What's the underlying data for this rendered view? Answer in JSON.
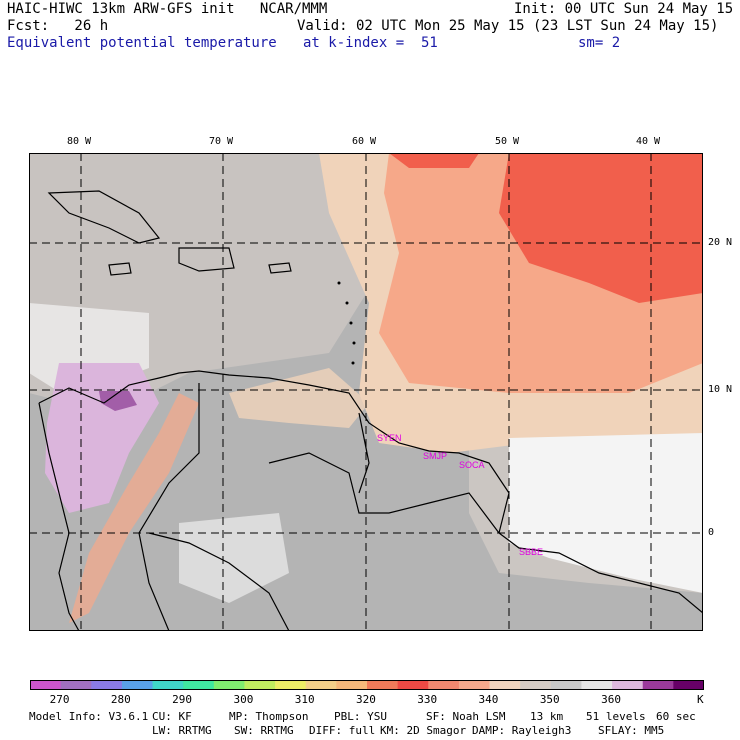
{
  "header": {
    "title": "HAIC-HIWC 13km ARW-GFS init   NCAR/MMM",
    "init": "Init: 00 UTC Sun 24 May 15",
    "fcst": "Fcst:   26 h",
    "valid": "Valid: 02 UTC Mon 25 May 15 (23 LST Sun 24 May 15)",
    "field": "Equivalent potential temperature",
    "level": "at k-index =  51",
    "smooth": "sm= 2"
  },
  "map": {
    "lon_labels": [
      "80 W",
      "70 W",
      "60 W",
      "50 W",
      "40 W"
    ],
    "lat_labels": [
      "20 N",
      "10 N",
      "0"
    ],
    "stations": [
      "SYEN",
      "SMJP",
      "SOCA",
      "SBBE"
    ],
    "colors": {
      "gray_dark": "#b4b4b4",
      "gray_light": "#cbc6c2",
      "peach": "#f0d3ba",
      "salmon": "#f6a889",
      "red": "#f15f4c",
      "white": "#f4f4f4",
      "lavender": "#dbb5dc",
      "purple": "#a25ea8",
      "station": "#e000e0"
    }
  },
  "colorbar": {
    "colors": [
      "#cc55cc",
      "#a070c0",
      "#8a7ae6",
      "#5aa0e8",
      "#40d6c8",
      "#40e8a0",
      "#80ee70",
      "#c0ee60",
      "#eeee66",
      "#f4d088",
      "#f6b87a",
      "#f07a5a",
      "#ee4a44",
      "#f28870",
      "#f6a88c",
      "#f2d4bc",
      "#d6ccc4",
      "#c8c8c8",
      "#e4e4e4",
      "#dcb8dc",
      "#9a3a9a",
      "#660066"
    ],
    "labels": [
      "270",
      "280",
      "290",
      "300",
      "310",
      "320",
      "330",
      "340",
      "350",
      "360"
    ],
    "unit": "K"
  },
  "footer": {
    "line1": [
      "Model Info: V3.6.1",
      "CU: KF",
      "MP: Thompson",
      "PBL: YSU",
      "SF: Noah LSM",
      "13 km",
      "51 levels",
      "60 sec"
    ],
    "line2": [
      "LW: RRTMG",
      "SW: RRTMG",
      "DIFF: full",
      "KM: 2D Smagor",
      "DAMP: Rayleigh3",
      "SFLAY: MM5"
    ]
  }
}
